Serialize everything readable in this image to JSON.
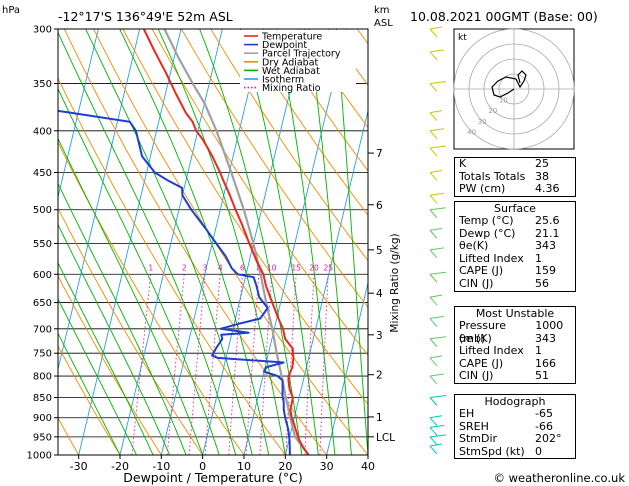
{
  "header": {
    "hpa_label": "hPa",
    "location": "-12°17'S  136°49'E  52m  ASL",
    "km_label": "km",
    "asl_label": "ASL",
    "datetime": "10.08.2021  00GMT  (Base: 00)"
  },
  "footer": {
    "credit": "© weatheronline.co.uk"
  },
  "colors": {
    "temperature": "#e8281e",
    "dewpoint": "#1e3cd6",
    "parcel": "#a0a0a0",
    "dry_adiabat": "#f08c00",
    "wet_adiabat": "#00b400",
    "isotherm": "#28a0dc",
    "mixing_ratio": "#e6189b"
  },
  "chart_data": {
    "type": "line",
    "title": "",
    "xlabel": "Dewpoint / Temperature (°C)",
    "ylabel": "hPa",
    "right_label": "Mixing Ratio (g/kg)",
    "xlim": [
      -35,
      40
    ],
    "ylim": [
      1000,
      300
    ],
    "x_ticks": [
      -30,
      -20,
      -10,
      0,
      10,
      20,
      30,
      40
    ],
    "pressure_ticks": [
      300,
      350,
      400,
      450,
      500,
      550,
      600,
      650,
      700,
      750,
      800,
      850,
      900,
      950,
      1000
    ],
    "km_ticks": [
      {
        "label": "7",
        "p": 426
      },
      {
        "label": "6",
        "p": 493
      },
      {
        "label": "5",
        "p": 560
      },
      {
        "label": "4",
        "p": 633
      },
      {
        "label": "3",
        "p": 712
      },
      {
        "label": "2",
        "p": 797
      },
      {
        "label": "1",
        "p": 898
      },
      {
        "label": "LCL",
        "p": 950
      }
    ],
    "mixing_ratio_labels": [
      "1",
      "2",
      "3",
      "4",
      "6",
      "8",
      "10",
      "15",
      "20",
      "25"
    ],
    "mixing_ratio_values": [
      1,
      2,
      3,
      4,
      6,
      8,
      10,
      15,
      20,
      25
    ],
    "legend": [
      "Temperature",
      "Dewpoint",
      "Parcel Trajectory",
      "Dry Adiabat",
      "Wet Adiabat",
      "Isotherm",
      "Mixing Ratio"
    ],
    "series": [
      {
        "name": "Temperature",
        "points": [
          [
            1000,
            25.6
          ],
          [
            980,
            24
          ],
          [
            960,
            22.6
          ],
          [
            940,
            21.5
          ],
          [
            920,
            20.5
          ],
          [
            900,
            19.4
          ],
          [
            880,
            18.6
          ],
          [
            850,
            18.5
          ],
          [
            830,
            17.2
          ],
          [
            810,
            16.4
          ],
          [
            800,
            16.2
          ],
          [
            780,
            16.6
          ],
          [
            760,
            16.3
          ],
          [
            740,
            15.6
          ],
          [
            720,
            13.2
          ],
          [
            700,
            12.1
          ],
          [
            680,
            10.4
          ],
          [
            650,
            8
          ],
          [
            620,
            5.5
          ],
          [
            600,
            4.2
          ],
          [
            580,
            2
          ],
          [
            560,
            0
          ],
          [
            550,
            -1
          ],
          [
            520,
            -4
          ],
          [
            500,
            -6.3
          ],
          [
            480,
            -8.5
          ],
          [
            460,
            -11
          ],
          [
            450,
            -12.2
          ],
          [
            430,
            -15
          ],
          [
            410,
            -18.3
          ],
          [
            400,
            -20.4
          ],
          [
            390,
            -21.8
          ],
          [
            380,
            -24
          ],
          [
            360,
            -27.5
          ],
          [
            340,
            -31
          ],
          [
            320,
            -35
          ],
          [
            300,
            -39
          ]
        ]
      },
      {
        "name": "Dewpoint",
        "points": [
          [
            1000,
            21.1
          ],
          [
            960,
            20.2
          ],
          [
            930,
            19.2
          ],
          [
            900,
            17.8
          ],
          [
            880,
            17
          ],
          [
            860,
            16.5
          ],
          [
            850,
            16
          ],
          [
            830,
            15.5
          ],
          [
            810,
            15
          ],
          [
            800,
            13.5
          ],
          [
            790,
            10
          ],
          [
            780,
            10.3
          ],
          [
            770,
            14.2
          ],
          [
            760,
            -2
          ],
          [
            755,
            -3.5
          ],
          [
            740,
            -3
          ],
          [
            720,
            -2
          ],
          [
            712,
            -2.5
          ],
          [
            708,
            4
          ],
          [
            700,
            -3
          ],
          [
            690,
            1.2
          ],
          [
            680,
            6
          ],
          [
            660,
            7.2
          ],
          [
            640,
            4.5
          ],
          [
            620,
            3.2
          ],
          [
            605,
            2
          ],
          [
            600,
            -2
          ],
          [
            590,
            -3.8
          ],
          [
            570,
            -6
          ],
          [
            550,
            -9
          ],
          [
            530,
            -12
          ],
          [
            500,
            -17
          ],
          [
            480,
            -20
          ],
          [
            470,
            -20.5
          ],
          [
            460,
            -24.5
          ],
          [
            450,
            -28
          ],
          [
            430,
            -32
          ],
          [
            400,
            -35
          ],
          [
            390,
            -37
          ],
          [
            380,
            -52
          ],
          [
            370,
            -68
          ],
          [
            340,
            -69
          ],
          [
            300,
            -70
          ]
        ]
      },
      {
        "name": "Parcel Trajectory",
        "points": [
          [
            1000,
            25.6
          ],
          [
            950,
            21.3
          ],
          [
            900,
            19
          ],
          [
            850,
            16.8
          ],
          [
            800,
            14.5
          ],
          [
            750,
            12
          ],
          [
            700,
            9.5
          ],
          [
            650,
            6.5
          ],
          [
            600,
            3.5
          ],
          [
            550,
            0
          ],
          [
            500,
            -4.3
          ],
          [
            450,
            -9.5
          ],
          [
            400,
            -15.5
          ],
          [
            370,
            -20
          ],
          [
            350,
            -24
          ],
          [
            325,
            -29
          ],
          [
            300,
            -34
          ]
        ]
      }
    ],
    "hodograph": {
      "label": "kt",
      "ring_labels": [
        "10",
        "20",
        "30",
        "40"
      ]
    }
  },
  "indices": {
    "basic": [
      {
        "label": "K",
        "value": "25"
      },
      {
        "label": "Totals Totals",
        "value": "38"
      },
      {
        "label": "PW (cm)",
        "value": "4.36"
      }
    ],
    "surface_title": "Surface",
    "surface": [
      {
        "label": "Temp (°C)",
        "value": "25.6"
      },
      {
        "label": "Dewp (°C)",
        "value": "21.1"
      },
      {
        "label": "θe(K)",
        "value": "343"
      },
      {
        "label": "Lifted Index",
        "value": "1"
      },
      {
        "label": "CAPE (J)",
        "value": "159"
      },
      {
        "label": "CIN (J)",
        "value": "56"
      }
    ],
    "unstable_title": "Most Unstable",
    "unstable": [
      {
        "label": "Pressure (mb)",
        "value": "1000"
      },
      {
        "label": "θe (K)",
        "value": "343"
      },
      {
        "label": "Lifted Index",
        "value": "1"
      },
      {
        "label": "CAPE (J)",
        "value": "166"
      },
      {
        "label": "CIN (J)",
        "value": "51"
      }
    ],
    "hodo_title": "Hodograph",
    "hodo": [
      {
        "label": "EH",
        "value": "-65"
      },
      {
        "label": "SREH",
        "value": "-66"
      },
      {
        "label": "StmDir",
        "value": "202°"
      },
      {
        "label": "StmSpd (kt)",
        "value": "0"
      }
    ]
  }
}
